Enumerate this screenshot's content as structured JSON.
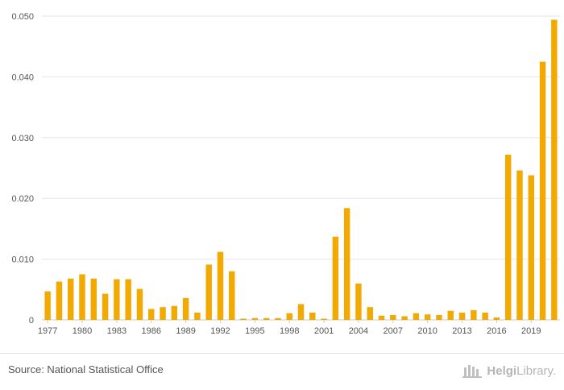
{
  "chart_data": {
    "type": "bar",
    "title": "",
    "xlabel": "",
    "ylabel": "",
    "ylim": [
      0,
      0.05
    ],
    "yticks": [
      "0",
      "0.010",
      "0.020",
      "0.030",
      "0.040",
      "0.050"
    ],
    "ytick_values": [
      0,
      0.01,
      0.02,
      0.03,
      0.04,
      0.05
    ],
    "grid": true,
    "bar_color": "#f2a900",
    "categories": [
      1977,
      1978,
      1979,
      1980,
      1981,
      1982,
      1983,
      1984,
      1985,
      1986,
      1987,
      1988,
      1989,
      1990,
      1991,
      1992,
      1993,
      1994,
      1995,
      1996,
      1997,
      1998,
      1999,
      2000,
      2001,
      2002,
      2003,
      2004,
      2005,
      2006,
      2007,
      2008,
      2009,
      2010,
      2011,
      2012,
      2013,
      2014,
      2015,
      2016,
      2017,
      2018,
      2019,
      2020,
      2021
    ],
    "xtick_labels": [
      "1977",
      "1980",
      "1983",
      "1986",
      "1989",
      "1992",
      "1995",
      "1998",
      "2001",
      "2004",
      "2007",
      "2010",
      "2013",
      "2016",
      "2019"
    ],
    "values": [
      0.0047,
      0.0063,
      0.0068,
      0.0075,
      0.0068,
      0.0043,
      0.0067,
      0.0067,
      0.0051,
      0.0018,
      0.0021,
      0.0023,
      0.0036,
      0.0012,
      0.0091,
      0.0112,
      0.008,
      0.0002,
      0.0003,
      0.0003,
      0.0003,
      0.0011,
      0.0026,
      0.0012,
      0.0002,
      0.0137,
      0.0184,
      0.006,
      0.0021,
      0.0007,
      0.0008,
      0.0006,
      0.0011,
      0.0009,
      0.0008,
      0.0015,
      0.0012,
      0.0016,
      0.0012,
      0.0004,
      0.0272,
      0.0246,
      0.0238,
      0.0425,
      0.0494
    ]
  },
  "footer": {
    "source": "Source: National Statistical Office",
    "logo_text_bold": "Helgi",
    "logo_text_rest": "Library."
  },
  "colors": {
    "grid": "#e6e6e6",
    "axis_text": "#555555",
    "logo": "#b5b5b5"
  }
}
